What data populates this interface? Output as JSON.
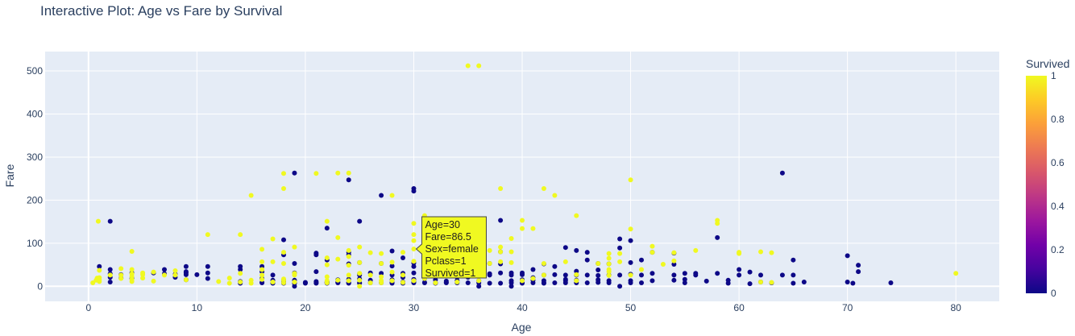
{
  "title": "Interactive Plot: Age vs Fare by Survival",
  "chart_data": {
    "type": "scatter",
    "title": "Interactive Plot: Age vs Fare by Survival",
    "xlabel": "Age",
    "ylabel": "Fare",
    "xlim": [
      -4,
      84
    ],
    "ylim": [
      -35,
      545
    ],
    "xticks": [
      0,
      10,
      20,
      30,
      40,
      50,
      60,
      70,
      80
    ],
    "yticks": [
      0,
      100,
      200,
      300,
      400,
      500
    ],
    "grid": true,
    "colorbar": {
      "title": "Survived",
      "ticks": [
        0,
        0.2,
        0.4,
        0.6,
        0.8,
        1
      ],
      "colorscale": [
        "#0d0887",
        "#46039f",
        "#7201a8",
        "#9c179e",
        "#bd3786",
        "#d8576b",
        "#ed7953",
        "#fb9f3a",
        "#fdca26",
        "#f0f921"
      ]
    },
    "hover": {
      "lines": [
        "Age=30",
        "Fare=86.5",
        "Sex=female",
        "Pclass=1",
        "Survived=1"
      ],
      "x": 30,
      "y": 86.5
    },
    "points_survived_0": [
      [
        1,
        46
      ],
      [
        2,
        151
      ],
      [
        2,
        39
      ],
      [
        2,
        29
      ],
      [
        2,
        21
      ],
      [
        2,
        10
      ],
      [
        3,
        27
      ],
      [
        3,
        19
      ],
      [
        4,
        31
      ],
      [
        4,
        18
      ],
      [
        6,
        31
      ],
      [
        7,
        39
      ],
      [
        7,
        29
      ],
      [
        8,
        28
      ],
      [
        8,
        21
      ],
      [
        9,
        46
      ],
      [
        9,
        34
      ],
      [
        9,
        31
      ],
      [
        9,
        27
      ],
      [
        9,
        15
      ],
      [
        10,
        27
      ],
      [
        11,
        46
      ],
      [
        11,
        31
      ],
      [
        11,
        18
      ],
      [
        14,
        46
      ],
      [
        14,
        39
      ],
      [
        14,
        11
      ],
      [
        14,
        7
      ],
      [
        16,
        46
      ],
      [
        16,
        34
      ],
      [
        16,
        18
      ],
      [
        16,
        9
      ],
      [
        16,
        8
      ],
      [
        17,
        26
      ],
      [
        17,
        14
      ],
      [
        17,
        8
      ],
      [
        17,
        7
      ],
      [
        18,
        108
      ],
      [
        18,
        73
      ],
      [
        18,
        14
      ],
      [
        18,
        11
      ],
      [
        18,
        8
      ],
      [
        18,
        7
      ],
      [
        19,
        263
      ],
      [
        19,
        53
      ],
      [
        19,
        31
      ],
      [
        19,
        14
      ],
      [
        19,
        8
      ],
      [
        19,
        7
      ],
      [
        19,
        0
      ],
      [
        20,
        9
      ],
      [
        20,
        8
      ],
      [
        20,
        7
      ],
      [
        21,
        77
      ],
      [
        21,
        73
      ],
      [
        21,
        34
      ],
      [
        21,
        11
      ],
      [
        21,
        8
      ],
      [
        21,
        7
      ],
      [
        22,
        135
      ],
      [
        22,
        61
      ],
      [
        22,
        10
      ],
      [
        22,
        9
      ],
      [
        22,
        8
      ],
      [
        22,
        7
      ],
      [
        23,
        15
      ],
      [
        23,
        10
      ],
      [
        23,
        9
      ],
      [
        23,
        8
      ],
      [
        24,
        247
      ],
      [
        24,
        79
      ],
      [
        24,
        73
      ],
      [
        24,
        52
      ],
      [
        24,
        16
      ],
      [
        24,
        9
      ],
      [
        24,
        8
      ],
      [
        24,
        7
      ],
      [
        25,
        151
      ],
      [
        25,
        55
      ],
      [
        25,
        29
      ],
      [
        25,
        26
      ],
      [
        25,
        17
      ],
      [
        25,
        8
      ],
      [
        25,
        7
      ],
      [
        26,
        31
      ],
      [
        26,
        14
      ],
      [
        26,
        8
      ],
      [
        27,
        211
      ],
      [
        27,
        53
      ],
      [
        27,
        30
      ],
      [
        27,
        8
      ],
      [
        28,
        82
      ],
      [
        28,
        47
      ],
      [
        28,
        26
      ],
      [
        28,
        15
      ],
      [
        28,
        9
      ],
      [
        28,
        8
      ],
      [
        28,
        7
      ],
      [
        29,
        66
      ],
      [
        29,
        30
      ],
      [
        29,
        21
      ],
      [
        29,
        10
      ],
      [
        29,
        8
      ],
      [
        29,
        7
      ],
      [
        30,
        227
      ],
      [
        30,
        221
      ],
      [
        30,
        54
      ],
      [
        30,
        46
      ],
      [
        30,
        31
      ],
      [
        30,
        16
      ],
      [
        30,
        13
      ],
      [
        30,
        10
      ],
      [
        30,
        8
      ],
      [
        31,
        50
      ],
      [
        31,
        27
      ],
      [
        31,
        18
      ],
      [
        31,
        9
      ],
      [
        31,
        8
      ],
      [
        32,
        77
      ],
      [
        32,
        30
      ],
      [
        32,
        15
      ],
      [
        32,
        8
      ],
      [
        32,
        7
      ],
      [
        33,
        26
      ],
      [
        33,
        12
      ],
      [
        33,
        9
      ],
      [
        33,
        8
      ],
      [
        34,
        56
      ],
      [
        34,
        26
      ],
      [
        34,
        21
      ],
      [
        34,
        13
      ],
      [
        34,
        8
      ],
      [
        35,
        52
      ],
      [
        35,
        26
      ],
      [
        35,
        21
      ],
      [
        35,
        8
      ],
      [
        36,
        78
      ],
      [
        36,
        40
      ],
      [
        36,
        27
      ],
      [
        36,
        24
      ],
      [
        36,
        13
      ],
      [
        36,
        8
      ],
      [
        36,
        0
      ],
      [
        37,
        53
      ],
      [
        37,
        29
      ],
      [
        37,
        26
      ],
      [
        37,
        7
      ],
      [
        38,
        153
      ],
      [
        38,
        80
      ],
      [
        38,
        52
      ],
      [
        38,
        31
      ],
      [
        38,
        7
      ],
      [
        39,
        31
      ],
      [
        39,
        26
      ],
      [
        39,
        13
      ],
      [
        39,
        8
      ],
      [
        39,
        0
      ],
      [
        40,
        31
      ],
      [
        40,
        27
      ],
      [
        40,
        15
      ],
      [
        40,
        8
      ],
      [
        40,
        7
      ],
      [
        41,
        39
      ],
      [
        41,
        20
      ],
      [
        41,
        14
      ],
      [
        41,
        8
      ],
      [
        42,
        52
      ],
      [
        42,
        26
      ],
      [
        42,
        13
      ],
      [
        42,
        8
      ],
      [
        42,
        7
      ],
      [
        43,
        46
      ],
      [
        43,
        27
      ],
      [
        43,
        8
      ],
      [
        44,
        90
      ],
      [
        44,
        26
      ],
      [
        44,
        16
      ],
      [
        44,
        13
      ],
      [
        44,
        8
      ],
      [
        45,
        83
      ],
      [
        45,
        35
      ],
      [
        45,
        26
      ],
      [
        45,
        14
      ],
      [
        45,
        8
      ],
      [
        46,
        79
      ],
      [
        46,
        61
      ],
      [
        46,
        26
      ],
      [
        46,
        8
      ],
      [
        47,
        53
      ],
      [
        47,
        38
      ],
      [
        47,
        25
      ],
      [
        47,
        15
      ],
      [
        47,
        9
      ],
      [
        48,
        52
      ],
      [
        48,
        26
      ],
      [
        48,
        13
      ],
      [
        48,
        8
      ],
      [
        49,
        110
      ],
      [
        49,
        89
      ],
      [
        49,
        26
      ],
      [
        49,
        0
      ],
      [
        50,
        106
      ],
      [
        50,
        55
      ],
      [
        50,
        28
      ],
      [
        50,
        13
      ],
      [
        50,
        8
      ],
      [
        51,
        61
      ],
      [
        51,
        26
      ],
      [
        51,
        8
      ],
      [
        52,
        79
      ],
      [
        52,
        30
      ],
      [
        52,
        13
      ],
      [
        54,
        77
      ],
      [
        54,
        51
      ],
      [
        54,
        26
      ],
      [
        54,
        14
      ],
      [
        55,
        30
      ],
      [
        55,
        16
      ],
      [
        55,
        8
      ],
      [
        56,
        30
      ],
      [
        56,
        26
      ],
      [
        57,
        12
      ],
      [
        58,
        113
      ],
      [
        58,
        30
      ],
      [
        59,
        14
      ],
      [
        59,
        7
      ],
      [
        60,
        39
      ],
      [
        60,
        26
      ],
      [
        61,
        33
      ],
      [
        61,
        6
      ],
      [
        62,
        26
      ],
      [
        62,
        10
      ],
      [
        63,
        8
      ],
      [
        64,
        263
      ],
      [
        64,
        26
      ],
      [
        65,
        61
      ],
      [
        65,
        26
      ],
      [
        65,
        7
      ],
      [
        66,
        10
      ],
      [
        70,
        71
      ],
      [
        70,
        10
      ],
      [
        70.5,
        7
      ],
      [
        71,
        49
      ],
      [
        71,
        34
      ],
      [
        74,
        8
      ]
    ],
    "points_survived_1": [
      [
        0.4,
        8
      ],
      [
        0.7,
        14
      ],
      [
        0.8,
        19
      ],
      [
        0.9,
        151
      ],
      [
        1,
        11
      ],
      [
        1,
        15
      ],
      [
        1,
        20
      ],
      [
        1,
        37
      ],
      [
        2,
        26
      ],
      [
        3,
        18
      ],
      [
        3,
        26
      ],
      [
        3,
        41
      ],
      [
        4,
        11
      ],
      [
        4,
        16
      ],
      [
        4,
        23
      ],
      [
        4,
        29
      ],
      [
        4,
        39
      ],
      [
        4,
        81
      ],
      [
        5,
        19
      ],
      [
        5,
        27
      ],
      [
        5,
        31
      ],
      [
        6,
        12
      ],
      [
        6,
        33
      ],
      [
        7,
        26
      ],
      [
        8,
        26
      ],
      [
        8,
        36
      ],
      [
        9,
        15
      ],
      [
        11,
        120
      ],
      [
        12,
        11
      ],
      [
        13,
        7
      ],
      [
        13,
        19
      ],
      [
        14,
        10
      ],
      [
        14,
        30
      ],
      [
        14,
        120
      ],
      [
        15,
        7
      ],
      [
        15,
        14
      ],
      [
        15,
        211
      ],
      [
        16,
        16
      ],
      [
        16,
        26
      ],
      [
        16,
        39
      ],
      [
        16,
        57
      ],
      [
        16,
        86
      ],
      [
        17,
        10
      ],
      [
        17,
        57
      ],
      [
        17,
        110
      ],
      [
        18,
        8
      ],
      [
        18,
        13
      ],
      [
        18,
        17
      ],
      [
        18,
        53
      ],
      [
        18,
        79
      ],
      [
        18,
        227
      ],
      [
        18,
        262
      ],
      [
        19,
        10
      ],
      [
        19,
        26
      ],
      [
        19,
        30
      ],
      [
        19,
        91
      ],
      [
        21,
        262
      ],
      [
        22,
        8
      ],
      [
        22,
        13
      ],
      [
        22,
        22
      ],
      [
        22,
        50
      ],
      [
        22,
        66
      ],
      [
        22,
        151
      ],
      [
        23,
        14
      ],
      [
        23,
        63
      ],
      [
        23,
        113
      ],
      [
        23,
        263
      ],
      [
        24,
        13
      ],
      [
        24,
        26
      ],
      [
        24,
        49
      ],
      [
        24,
        69
      ],
      [
        24,
        83
      ],
      [
        24,
        263
      ],
      [
        25,
        0
      ],
      [
        25,
        14
      ],
      [
        25,
        30
      ],
      [
        25,
        55
      ],
      [
        25,
        91
      ],
      [
        26,
        8
      ],
      [
        26,
        26
      ],
      [
        26,
        78
      ],
      [
        27,
        8
      ],
      [
        27,
        13
      ],
      [
        27,
        22
      ],
      [
        27,
        53
      ],
      [
        27,
        76
      ],
      [
        28,
        13
      ],
      [
        28,
        33
      ],
      [
        28,
        56
      ],
      [
        28,
        211
      ],
      [
        29,
        9
      ],
      [
        29,
        26
      ],
      [
        29,
        79
      ],
      [
        30,
        13
      ],
      [
        30,
        58
      ],
      [
        30,
        86.5
      ],
      [
        30,
        106
      ],
      [
        30,
        120
      ],
      [
        30,
        146
      ],
      [
        31,
        18
      ],
      [
        31,
        57
      ],
      [
        31,
        134
      ],
      [
        31,
        164
      ],
      [
        32,
        8
      ],
      [
        32,
        30
      ],
      [
        32,
        76
      ],
      [
        33,
        27
      ],
      [
        33,
        53
      ],
      [
        33,
        90
      ],
      [
        34,
        10
      ],
      [
        34,
        26
      ],
      [
        35,
        26
      ],
      [
        35,
        53
      ],
      [
        35,
        512
      ],
      [
        36,
        13
      ],
      [
        36,
        26
      ],
      [
        36,
        71
      ],
      [
        36,
        120
      ],
      [
        36,
        135
      ],
      [
        36,
        512
      ],
      [
        37,
        53
      ],
      [
        37,
        83
      ],
      [
        38,
        57
      ],
      [
        38,
        80
      ],
      [
        38,
        91
      ],
      [
        38,
        227
      ],
      [
        39,
        55
      ],
      [
        39,
        80
      ],
      [
        39,
        111
      ],
      [
        40,
        13
      ],
      [
        40,
        134
      ],
      [
        40,
        153
      ],
      [
        41,
        18
      ],
      [
        41,
        134
      ],
      [
        42,
        26
      ],
      [
        42,
        53
      ],
      [
        42,
        227
      ],
      [
        43,
        211
      ],
      [
        44,
        57
      ],
      [
        45,
        13
      ],
      [
        45,
        27
      ],
      [
        45,
        164
      ],
      [
        47,
        53
      ],
      [
        48,
        25
      ],
      [
        48,
        34
      ],
      [
        48,
        39
      ],
      [
        48,
        52
      ],
      [
        48,
        65
      ],
      [
        48,
        76
      ],
      [
        49,
        57
      ],
      [
        49,
        76
      ],
      [
        50,
        26
      ],
      [
        50,
        133
      ],
      [
        50,
        247
      ],
      [
        51,
        39
      ],
      [
        52,
        79
      ],
      [
        52,
        93
      ],
      [
        53,
        51
      ],
      [
        54,
        59
      ],
      [
        54,
        78
      ],
      [
        56,
        83
      ],
      [
        58,
        146
      ],
      [
        58,
        153
      ],
      [
        60,
        76
      ],
      [
        60,
        79
      ],
      [
        62,
        10
      ],
      [
        62,
        80
      ],
      [
        63,
        9
      ],
      [
        63,
        78
      ],
      [
        80,
        30
      ]
    ]
  }
}
